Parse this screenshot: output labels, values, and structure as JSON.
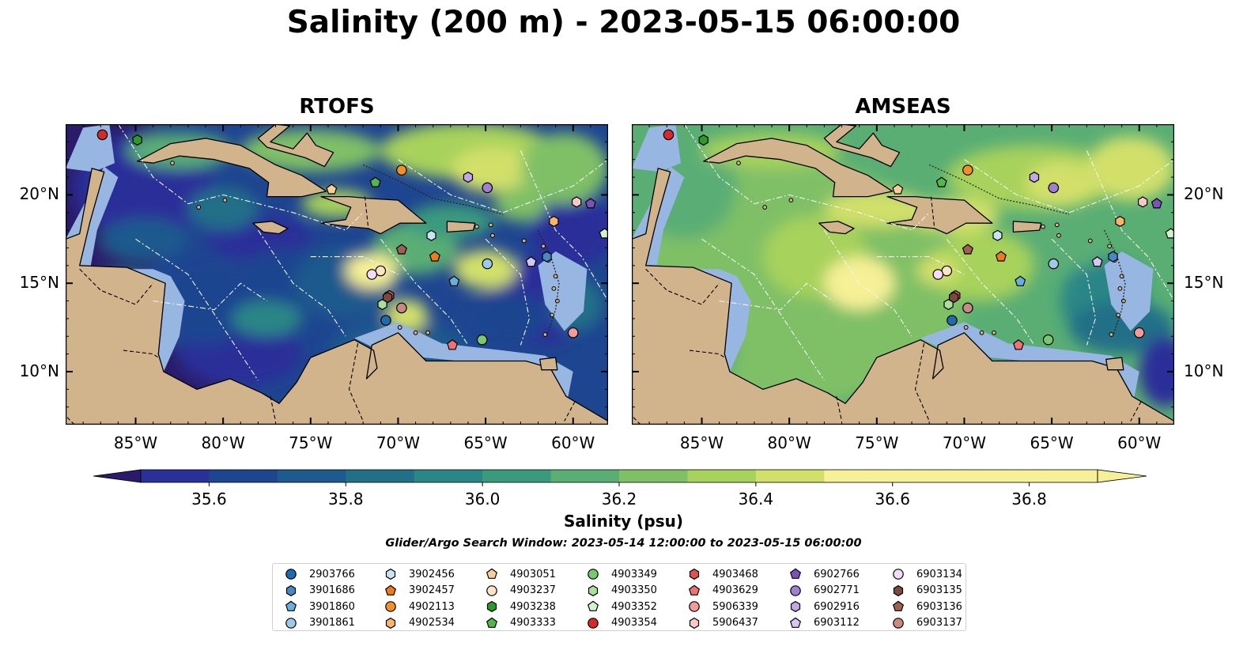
{
  "title": "Salinity (200 m) - 2023-05-15 06:00:00",
  "panels": [
    {
      "title": "RTOFS"
    },
    {
      "title": "AMSEAS"
    }
  ],
  "map": {
    "lon_range": [
      -89,
      -58
    ],
    "lat_range": [
      7,
      24
    ],
    "lon_ticks": [
      "85°W",
      "80°W",
      "75°W",
      "70°W",
      "65°W",
      "60°W"
    ],
    "lat_ticks": [
      "20°N",
      "15°N",
      "10°N"
    ],
    "land_color": "#d2b48c",
    "shelf_color": "#97b6e1"
  },
  "colorbar": {
    "label": "Salinity (psu)",
    "min": 35.5,
    "max": 36.9,
    "step": 0.1,
    "extend": "both",
    "ticks": [
      "35.6",
      "35.8",
      "36.0",
      "36.2",
      "36.4",
      "36.6",
      "36.8"
    ],
    "colors": [
      "#2b1a6b",
      "#2a2f99",
      "#1e4590",
      "#1d5a8d",
      "#217088",
      "#2b8686",
      "#3a9a7d",
      "#5aae74",
      "#7fc066",
      "#a7d25c",
      "#d2e06a",
      "#f6f097"
    ]
  },
  "search_window": "Glider/Argo Search Window: 2023-05-14 12:00:00 to 2023-05-15 06:00:00",
  "legend": [
    {
      "id": "2903766",
      "marker": "circle",
      "color": "#1f6bb0",
      "lon": -70.7,
      "lat": 12.9
    },
    {
      "id": "3901686",
      "marker": "hexagon",
      "color": "#4a88c4",
      "lon": -61.5,
      "lat": 16.5
    },
    {
      "id": "3901860",
      "marker": "pentagon",
      "color": "#6aaee0",
      "lon": -66.8,
      "lat": 15.1
    },
    {
      "id": "3901861",
      "marker": "circle",
      "color": "#9ecaea",
      "lon": -64.9,
      "lat": 16.1
    },
    {
      "id": "3902456",
      "marker": "hexagon",
      "color": "#c9e4f5",
      "lon": -68.1,
      "lat": 17.7
    },
    {
      "id": "3902457",
      "marker": "pentagon",
      "color": "#f07b18",
      "lon": -67.9,
      "lat": 16.5
    },
    {
      "id": "4902113",
      "marker": "circle",
      "color": "#f58f2a",
      "lon": -69.8,
      "lat": 21.4
    },
    {
      "id": "4902534",
      "marker": "hexagon",
      "color": "#fbb46a",
      "lon": -61.1,
      "lat": 18.5
    },
    {
      "id": "4903051",
      "marker": "pentagon",
      "color": "#fdcf97",
      "lon": -73.8,
      "lat": 20.3
    },
    {
      "id": "4903237",
      "marker": "circle",
      "color": "#fde4c4",
      "lon": -71.0,
      "lat": 15.7
    },
    {
      "id": "4903238",
      "marker": "hexagon",
      "color": "#2a9a2a",
      "lon": -84.9,
      "lat": 23.1
    },
    {
      "id": "4903333",
      "marker": "pentagon",
      "color": "#52b84a",
      "lon": -71.3,
      "lat": 20.7
    },
    {
      "id": "4903349",
      "marker": "circle",
      "color": "#76c96c",
      "lon": -65.2,
      "lat": 11.8
    },
    {
      "id": "4903350",
      "marker": "hexagon",
      "color": "#a8e19a",
      "lon": -70.9,
      "lat": 13.8
    },
    {
      "id": "4903352",
      "marker": "pentagon",
      "color": "#d3f2cc",
      "lon": -58.2,
      "lat": 17.8
    },
    {
      "id": "4903354",
      "marker": "circle",
      "color": "#d42a2a",
      "lon": -86.9,
      "lat": 23.4
    },
    {
      "id": "4903468",
      "marker": "hexagon",
      "color": "#e05252",
      "lon": -70.5,
      "lat": 14.3
    },
    {
      "id": "4903629",
      "marker": "pentagon",
      "color": "#f07272",
      "lon": -66.9,
      "lat": 11.5
    },
    {
      "id": "5906339",
      "marker": "circle",
      "color": "#f59a9a",
      "lon": -60.0,
      "lat": 12.2
    },
    {
      "id": "5906437",
      "marker": "hexagon",
      "color": "#fbc8c8",
      "lon": -59.8,
      "lat": 19.6
    },
    {
      "id": "6902766",
      "marker": "pentagon",
      "color": "#7b52b8",
      "lon": -59.0,
      "lat": 19.5
    },
    {
      "id": "6902771",
      "marker": "circle",
      "color": "#a07ed0",
      "lon": -64.9,
      "lat": 20.4
    },
    {
      "id": "6902916",
      "marker": "hexagon",
      "color": "#c2a8e6",
      "lon": -66.0,
      "lat": 21.0
    },
    {
      "id": "6903112",
      "marker": "pentagon",
      "color": "#d8c6f2",
      "lon": -62.4,
      "lat": 16.2
    },
    {
      "id": "6903134",
      "marker": "circle",
      "color": "#f3dcf7",
      "lon": -71.5,
      "lat": 15.5
    },
    {
      "id": "6903135",
      "marker": "hexagon",
      "color": "#7a4a3c",
      "lon": -70.6,
      "lat": 14.2
    },
    {
      "id": "6903136",
      "marker": "pentagon",
      "color": "#a06050",
      "lon": -69.8,
      "lat": 16.9
    },
    {
      "id": "6903137",
      "marker": "circle",
      "color": "#c98a80",
      "lon": -69.8,
      "lat": 13.6
    }
  ]
}
